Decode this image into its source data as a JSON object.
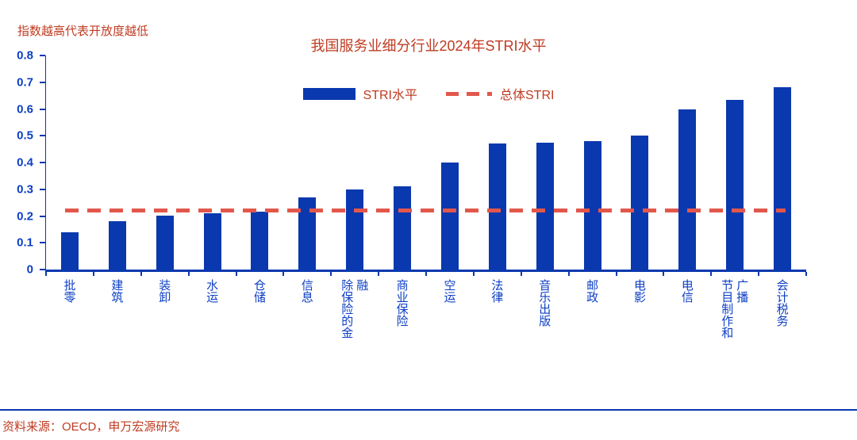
{
  "note": "指数越高代表开放度越低",
  "legend": {
    "bar_label": "STRI水平",
    "line_label": "总体STRI"
  },
  "source": "资料来源：OECD，申万宏源研究",
  "colors": {
    "bar_color": "#0a38ae",
    "axis_color": "#0a38ae",
    "axis_text": "#0d3fc4",
    "dash_color": "#e2574b",
    "red_text": "#bf3b21"
  },
  "chart_data": {
    "type": "bar",
    "title": "我国服务业细分行业2024年STRI水平",
    "annotation": "指数越高代表开放度越低",
    "categories": [
      "批零",
      "建筑",
      "装卸",
      "水运",
      "仓储",
      "信息",
      "除保险的金融",
      "商业保险",
      "空运",
      "法律",
      "音乐出版",
      "邮政",
      "电影",
      "电信",
      "节目制作和广播",
      "会计税务"
    ],
    "series": [
      {
        "name": "STRI水平",
        "values": [
          0.14,
          0.18,
          0.2,
          0.21,
          0.215,
          0.27,
          0.3,
          0.31,
          0.4,
          0.47,
          0.475,
          0.48,
          0.5,
          0.6,
          0.635,
          0.68
        ]
      }
    ],
    "reference_line": {
      "label": "总体STRI",
      "value": 0.22,
      "style": "dashed"
    },
    "xlabel": "",
    "ylabel": "",
    "ylim": [
      0,
      0.8
    ],
    "ytick_step": 0.1,
    "legend_position": "top",
    "grid": false,
    "source": "资料来源：OECD，申万宏源研究"
  }
}
